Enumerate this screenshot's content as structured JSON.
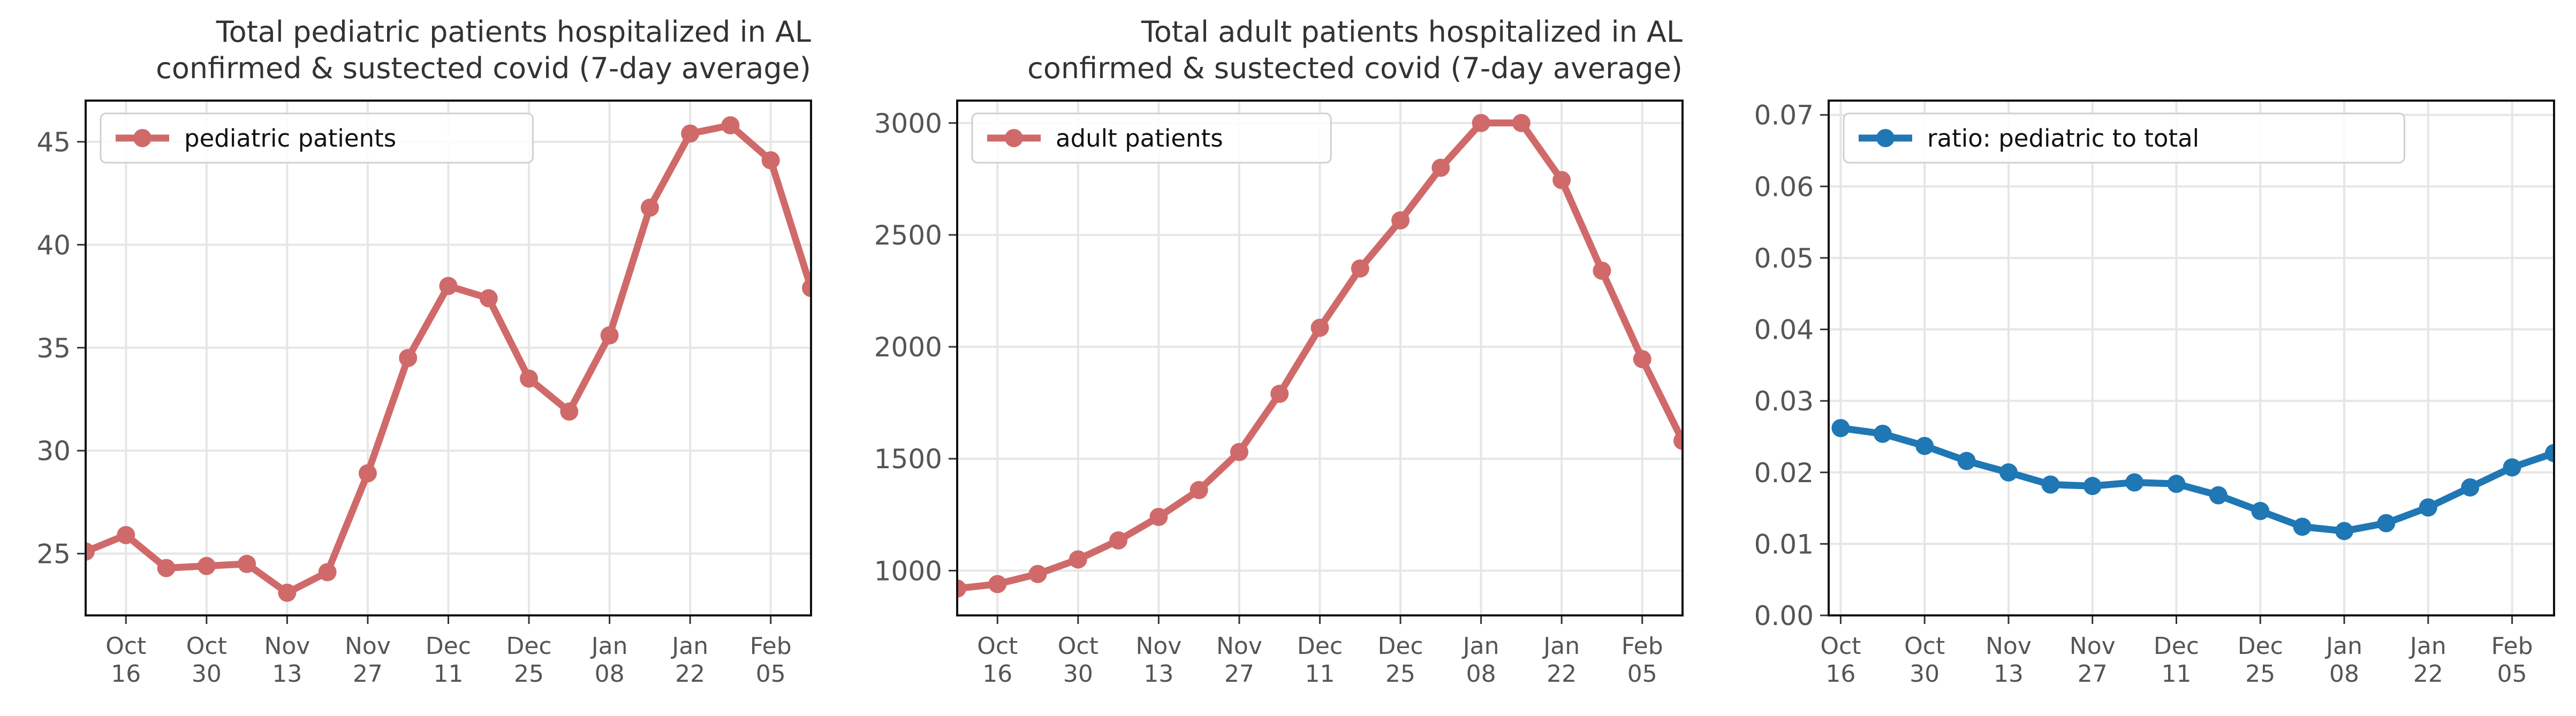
{
  "chart_data": [
    {
      "type": "line",
      "title": "Total pediatric patients hospitalized in AL\nconfirmed & sustected covid (7-day average)",
      "xlabel": "",
      "ylabel": "",
      "x": [
        "2021-10-09",
        "2021-10-16",
        "2021-10-23",
        "2021-10-30",
        "2021-11-06",
        "2021-11-13",
        "2021-11-20",
        "2021-11-27",
        "2021-12-04",
        "2021-12-11",
        "2021-12-18",
        "2021-12-25",
        "2022-01-01",
        "2022-01-08",
        "2022-01-15",
        "2022-01-22",
        "2022-01-29",
        "2022-02-05",
        "2022-02-12"
      ],
      "series": [
        {
          "name": "pediatric patients",
          "color": "#d06a6a",
          "values": [
            25.1,
            25.9,
            24.3,
            24.4,
            24.5,
            23.1,
            24.1,
            28.9,
            34.5,
            38.0,
            37.4,
            33.5,
            31.9,
            35.6,
            41.8,
            45.4,
            45.8,
            44.1,
            37.9
          ]
        }
      ],
      "xlim": [
        "2021-10-09",
        "2022-02-12"
      ],
      "ylim": [
        22.0,
        47.0
      ],
      "yticks": [
        25,
        30,
        35,
        40,
        45
      ],
      "ytick_labels": [
        "25",
        "30",
        "35",
        "40",
        "45"
      ],
      "xticks": [
        "2021-10-16",
        "2021-10-30",
        "2021-11-13",
        "2021-11-27",
        "2021-12-11",
        "2021-12-25",
        "2022-01-08",
        "2022-01-22",
        "2022-02-05"
      ],
      "xtick_labels": [
        "Oct\n16",
        "Oct\n30",
        "Nov\n13",
        "Nov\n27",
        "Dec\n11",
        "Dec\n25",
        "Jan\n08",
        "Jan\n22",
        "Feb\n05"
      ],
      "grid": true,
      "legend": "top-left"
    },
    {
      "type": "line",
      "title": "Total adult patients hospitalized in AL\nconfirmed & sustected covid (7-day average)",
      "xlabel": "",
      "ylabel": "",
      "x": [
        "2021-10-09",
        "2021-10-16",
        "2021-10-23",
        "2021-10-30",
        "2021-11-06",
        "2021-11-13",
        "2021-11-20",
        "2021-11-27",
        "2021-12-04",
        "2021-12-11",
        "2021-12-18",
        "2021-12-25",
        "2022-01-01",
        "2022-01-08",
        "2022-01-15",
        "2022-01-22",
        "2022-01-29",
        "2022-02-05",
        "2022-02-12"
      ],
      "series": [
        {
          "name": "adult patients",
          "color": "#d06a6a",
          "values": [
            920,
            940,
            985,
            1050,
            1135,
            1240,
            1360,
            1530,
            1790,
            2085,
            2350,
            2565,
            2800,
            3000,
            3000,
            2745,
            2340,
            1945,
            1580
          ]
        }
      ],
      "xlim": [
        "2021-10-09",
        "2022-02-12"
      ],
      "ylim": [
        800,
        3100
      ],
      "yticks": [
        1000,
        1500,
        2000,
        2500,
        3000
      ],
      "ytick_labels": [
        "1000",
        "1500",
        "2000",
        "2500",
        "3000"
      ],
      "xticks": [
        "2021-10-16",
        "2021-10-30",
        "2021-11-13",
        "2021-11-27",
        "2021-12-11",
        "2021-12-25",
        "2022-01-08",
        "2022-01-22",
        "2022-02-05"
      ],
      "xtick_labels": [
        "Oct\n16",
        "Oct\n30",
        "Nov\n13",
        "Nov\n27",
        "Dec\n11",
        "Dec\n25",
        "Jan\n08",
        "Jan\n22",
        "Feb\n05"
      ],
      "grid": true,
      "legend": "top-left"
    },
    {
      "type": "line",
      "title": "",
      "xlabel": "",
      "ylabel": "",
      "x": [
        "2021-10-16",
        "2021-10-23",
        "2021-10-30",
        "2021-11-06",
        "2021-11-13",
        "2021-11-20",
        "2021-11-27",
        "2021-12-04",
        "2021-12-11",
        "2021-12-18",
        "2021-12-25",
        "2022-01-01",
        "2022-01-08",
        "2022-01-15",
        "2022-01-22",
        "2022-01-29",
        "2022-02-05",
        "2022-02-12"
      ],
      "series": [
        {
          "name": "ratio: pediatric to total",
          "color": "#1f77b4",
          "values": [
            0.0262,
            0.0254,
            0.0237,
            0.0216,
            0.02,
            0.0183,
            0.0181,
            0.0186,
            0.0184,
            0.0168,
            0.0146,
            0.0124,
            0.0118,
            0.0129,
            0.0151,
            0.0179,
            0.0207,
            0.0227
          ]
        }
      ],
      "xlim": [
        "2021-10-14",
        "2022-02-12"
      ],
      "ylim": [
        0.0,
        0.072
      ],
      "yticks": [
        0.0,
        0.01,
        0.02,
        0.03,
        0.04,
        0.05,
        0.06,
        0.07
      ],
      "ytick_labels": [
        "0.00",
        "0.01",
        "0.02",
        "0.03",
        "0.04",
        "0.05",
        "0.06",
        "0.07"
      ],
      "xticks": [
        "2021-10-16",
        "2021-10-30",
        "2021-11-13",
        "2021-11-27",
        "2021-12-11",
        "2021-12-25",
        "2022-01-08",
        "2022-01-22",
        "2022-02-05"
      ],
      "xtick_labels": [
        "Oct\n16",
        "Oct\n30",
        "Nov\n13",
        "Nov\n27",
        "Dec\n11",
        "Dec\n25",
        "Jan\n08",
        "Jan\n22",
        "Feb\n05"
      ],
      "grid": true,
      "legend": "top-left"
    }
  ]
}
